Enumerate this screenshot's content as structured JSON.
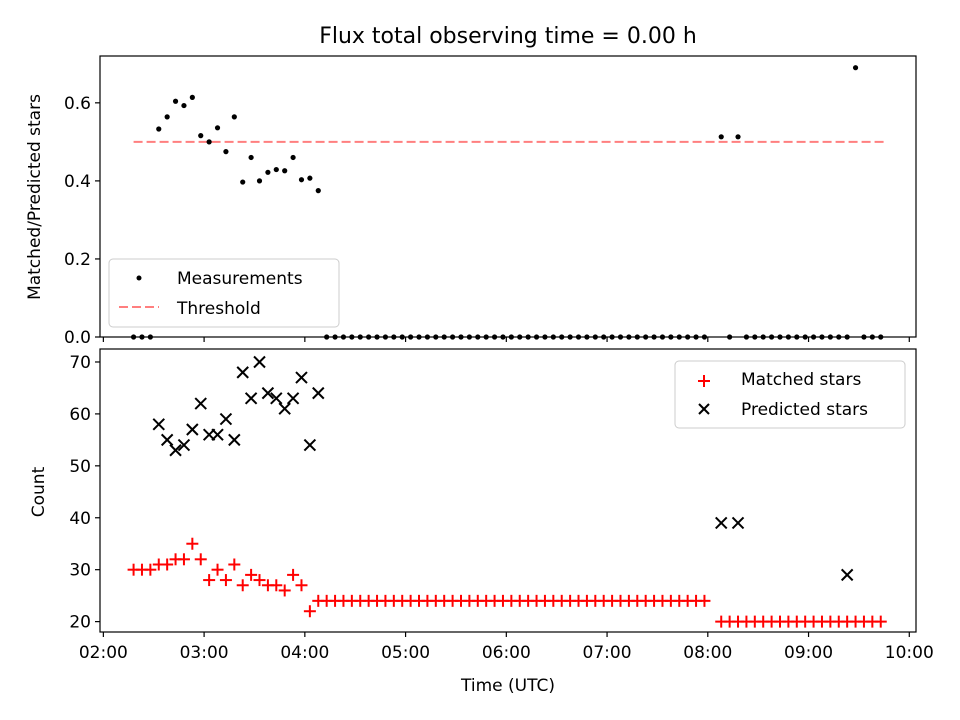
{
  "title": "Flux total observing time = 0.00 h",
  "colors": {
    "measurement": "#000000",
    "threshold": "#ff7f7f",
    "matched": "#ff0000",
    "predicted": "#000000"
  },
  "chart_data": [
    {
      "type": "scatter",
      "ylabel": "Matched/Predicted stars",
      "ylim": [
        0,
        0.72
      ],
      "yticks": [
        0.0,
        0.2,
        0.4,
        0.6
      ],
      "ytick_labels": [
        "0.0",
        "0.2",
        "0.4",
        "0.6"
      ],
      "xlim": [
        "01:58",
        "10:04"
      ],
      "xticks": [
        "02:00",
        "03:00",
        "04:00",
        "05:00",
        "06:00",
        "07:00",
        "08:00",
        "09:00",
        "10:00"
      ],
      "xtick_labels_shown": false,
      "legend": {
        "position": "lower-left",
        "entries": [
          "Measurements",
          "Threshold"
        ]
      },
      "threshold": {
        "name": "Threshold",
        "value": 0.5,
        "x_start": "02:18",
        "x_end": "09:45",
        "style": "dashed"
      },
      "series": [
        {
          "name": "Measurements",
          "x": [
            "02:18",
            "02:23",
            "02:28",
            "02:33",
            "02:38",
            "02:43",
            "02:48",
            "02:53",
            "02:58",
            "03:03",
            "03:08",
            "03:13",
            "03:18",
            "03:23",
            "03:28",
            "03:33",
            "03:38",
            "03:43",
            "03:48",
            "03:53",
            "03:58",
            "04:03",
            "04:08",
            "04:13",
            "04:18",
            "04:23",
            "04:28",
            "04:33",
            "04:38",
            "04:43",
            "04:48",
            "04:53",
            "04:58",
            "05:03",
            "05:08",
            "05:13",
            "05:18",
            "05:23",
            "05:28",
            "05:33",
            "05:38",
            "05:43",
            "05:48",
            "05:53",
            "05:58",
            "06:03",
            "06:08",
            "06:13",
            "06:18",
            "06:23",
            "06:28",
            "06:33",
            "06:38",
            "06:43",
            "06:48",
            "06:53",
            "06:58",
            "07:03",
            "07:08",
            "07:13",
            "07:18",
            "07:23",
            "07:28",
            "07:33",
            "07:38",
            "07:43",
            "07:48",
            "07:53",
            "07:58",
            "08:08",
            "08:13",
            "08:18",
            "08:23",
            "08:28",
            "08:33",
            "08:38",
            "08:43",
            "08:48",
            "08:53",
            "08:58",
            "09:03",
            "09:08",
            "09:13",
            "09:18",
            "09:23",
            "09:28",
            "09:33",
            "09:38",
            "09:43"
          ],
          "y": [
            0,
            0,
            0,
            0.533,
            0.564,
            0.604,
            0.593,
            0.614,
            0.516,
            0.5,
            0.536,
            0.475,
            0.564,
            0.397,
            0.46,
            0.4,
            0.422,
            0.429,
            0.426,
            0.46,
            0.403,
            0.407,
            0.375,
            0,
            0,
            0,
            0,
            0,
            0,
            0,
            0,
            0,
            0,
            0,
            0,
            0,
            0,
            0,
            0,
            0,
            0,
            0,
            0,
            0,
            0,
            0,
            0,
            0,
            0,
            0,
            0,
            0,
            0,
            0,
            0,
            0,
            0,
            0,
            0,
            0,
            0,
            0,
            0,
            0,
            0,
            0,
            0,
            0,
            0,
            0.513,
            0,
            0.513,
            0,
            0,
            0,
            0,
            0,
            0,
            0,
            0,
            0,
            0,
            0,
            0,
            0,
            0.69,
            0,
            0,
            0
          ]
        }
      ]
    },
    {
      "type": "scatter",
      "xlabel": "Time (UTC)",
      "ylabel": "Count",
      "ylim": [
        18,
        72.5
      ],
      "yticks": [
        20,
        30,
        40,
        50,
        60,
        70
      ],
      "xlim": [
        "01:58",
        "10:04"
      ],
      "xticks": [
        "02:00",
        "03:00",
        "04:00",
        "05:00",
        "06:00",
        "07:00",
        "08:00",
        "09:00",
        "10:00"
      ],
      "legend": {
        "position": "top-right",
        "entries": [
          "Matched stars",
          "Predicted stars"
        ]
      },
      "series": [
        {
          "name": "Matched stars",
          "marker": "+",
          "x": [
            "02:18",
            "02:23",
            "02:28",
            "02:33",
            "02:38",
            "02:43",
            "02:48",
            "02:53",
            "02:58",
            "03:03",
            "03:08",
            "03:13",
            "03:18",
            "03:23",
            "03:28",
            "03:33",
            "03:38",
            "03:43",
            "03:48",
            "03:53",
            "03:58",
            "04:03",
            "04:08",
            "04:13",
            "04:18",
            "04:23",
            "04:28",
            "04:33",
            "04:38",
            "04:43",
            "04:48",
            "04:53",
            "04:58",
            "05:03",
            "05:08",
            "05:13",
            "05:18",
            "05:23",
            "05:28",
            "05:33",
            "05:38",
            "05:43",
            "05:48",
            "05:53",
            "05:58",
            "06:03",
            "06:08",
            "06:13",
            "06:18",
            "06:23",
            "06:28",
            "06:33",
            "06:38",
            "06:43",
            "06:48",
            "06:53",
            "06:58",
            "07:03",
            "07:08",
            "07:13",
            "07:18",
            "07:23",
            "07:28",
            "07:33",
            "07:38",
            "07:43",
            "07:48",
            "07:53",
            "07:58",
            "08:08",
            "08:13",
            "08:18",
            "08:23",
            "08:28",
            "08:33",
            "08:38",
            "08:43",
            "08:48",
            "08:53",
            "08:58",
            "09:03",
            "09:08",
            "09:13",
            "09:18",
            "09:23",
            "09:28",
            "09:33",
            "09:38",
            "09:43"
          ],
          "y": [
            30,
            30,
            30,
            31,
            31,
            32,
            32,
            35,
            32,
            28,
            30,
            28,
            31,
            27,
            29,
            28,
            27,
            27,
            26,
            29,
            27,
            22,
            24,
            24,
            24,
            24,
            24,
            24,
            24,
            24,
            24,
            24,
            24,
            24,
            24,
            24,
            24,
            24,
            24,
            24,
            24,
            24,
            24,
            24,
            24,
            24,
            24,
            24,
            24,
            24,
            24,
            24,
            24,
            24,
            24,
            24,
            24,
            24,
            24,
            24,
            24,
            24,
            24,
            24,
            24,
            24,
            24,
            24,
            24,
            20,
            20,
            20,
            20,
            20,
            20,
            20,
            20,
            20,
            20,
            20,
            20,
            20,
            20,
            20,
            20,
            20,
            20,
            20,
            20
          ]
        },
        {
          "name": "Predicted stars",
          "marker": "x",
          "x": [
            "02:33",
            "02:38",
            "02:43",
            "02:48",
            "02:53",
            "02:58",
            "03:03",
            "03:08",
            "03:13",
            "03:18",
            "03:23",
            "03:28",
            "03:33",
            "03:38",
            "03:43",
            "03:48",
            "03:53",
            "03:58",
            "04:03",
            "04:08",
            "08:08",
            "08:18",
            "09:23"
          ],
          "y": [
            58,
            55,
            53,
            54,
            57,
            62,
            56,
            56,
            59,
            55,
            68,
            63,
            70,
            64,
            63,
            61,
            63,
            67,
            54,
            64,
            39,
            39,
            29
          ]
        }
      ]
    }
  ]
}
